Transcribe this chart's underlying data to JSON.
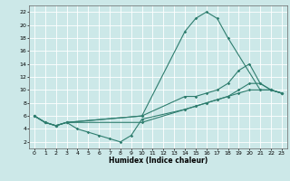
{
  "xlabel": "Humidex (Indice chaleur)",
  "bg_color": "#cce8e8",
  "grid_color": "#ffffff",
  "line_color": "#2e7d6e",
  "xlim": [
    -0.5,
    23.5
  ],
  "ylim": [
    1,
    23
  ],
  "xticks": [
    0,
    1,
    2,
    3,
    4,
    5,
    6,
    7,
    8,
    9,
    10,
    11,
    12,
    13,
    14,
    15,
    16,
    17,
    18,
    19,
    20,
    21,
    22,
    23
  ],
  "yticks": [
    2,
    4,
    6,
    8,
    10,
    12,
    14,
    16,
    18,
    20,
    22
  ],
  "lines": [
    {
      "x": [
        0,
        1,
        2,
        3,
        10,
        14,
        15,
        16,
        17,
        18,
        21,
        22,
        23
      ],
      "y": [
        6,
        5,
        4.5,
        5,
        6,
        19,
        21,
        22,
        21,
        18,
        10,
        10,
        9.5
      ]
    },
    {
      "x": [
        0,
        1,
        2,
        3,
        10,
        14,
        15,
        16,
        17,
        18,
        19,
        20,
        21,
        22,
        23
      ],
      "y": [
        6,
        5,
        4.5,
        5,
        6,
        9,
        9,
        9.5,
        10,
        11,
        13,
        14,
        11,
        10,
        9.5
      ]
    },
    {
      "x": [
        0,
        1,
        2,
        3,
        10,
        14,
        15,
        16,
        17,
        18,
        19,
        20,
        21,
        22,
        23
      ],
      "y": [
        6,
        5,
        4.5,
        5,
        5,
        7,
        7.5,
        8,
        8.5,
        9,
        9.5,
        10,
        10,
        10,
        9.5
      ]
    },
    {
      "x": [
        0,
        1,
        2,
        3,
        4,
        5,
        6,
        7,
        8,
        9,
        10,
        14,
        15,
        16,
        17,
        18,
        19,
        20,
        21,
        22,
        23
      ],
      "y": [
        6,
        5,
        4.5,
        5,
        4,
        3.5,
        3,
        2.5,
        2,
        3,
        5.5,
        7,
        7.5,
        8,
        8.5,
        9,
        10,
        11,
        11,
        10,
        9.5
      ]
    }
  ]
}
